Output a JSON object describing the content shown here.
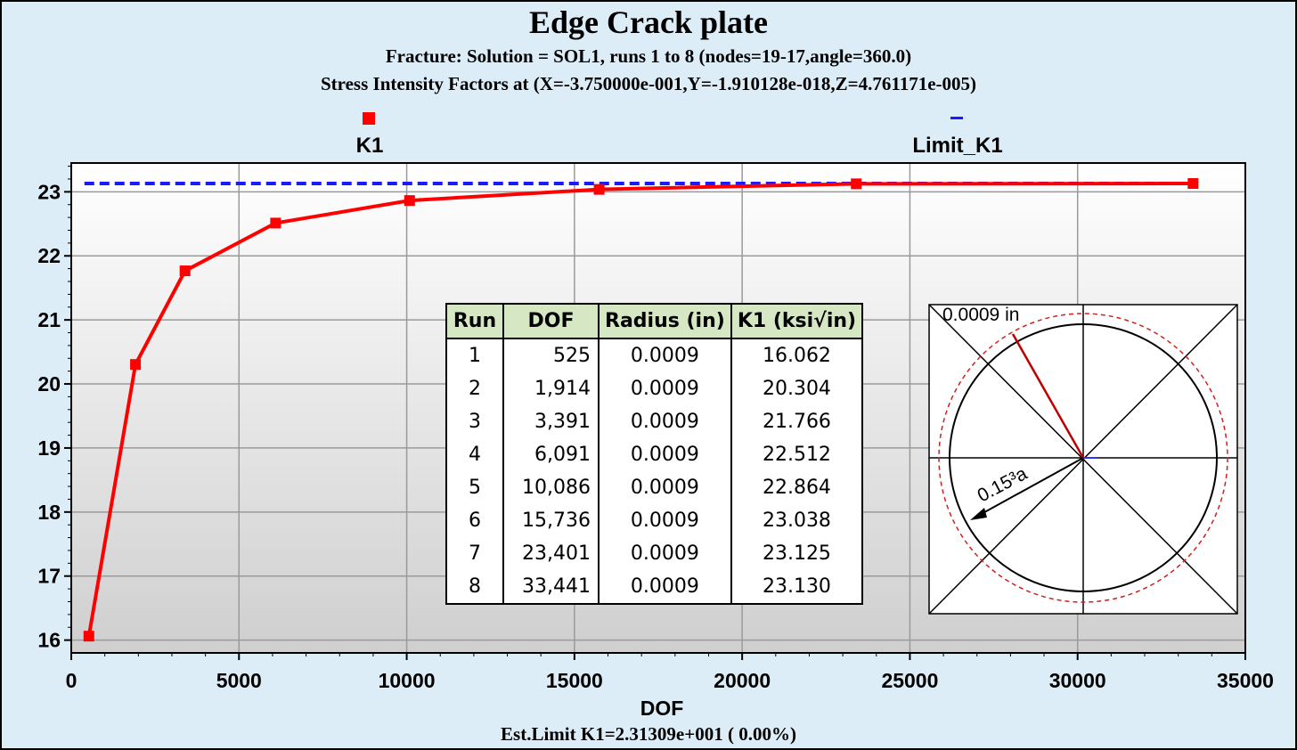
{
  "title": "Edge Crack plate",
  "subtitle1": "Fracture: Solution = SOL1, runs 1 to 8 (nodes=19-17,angle=360.0)",
  "subtitle2": "Stress Intensity Factors at (X=-3.750000e-001,Y=-1.910128e-018,Z=4.761171e-005)",
  "footer": "Est.Limit K1=2.31309e+001 ( 0.00%)",
  "colors": {
    "k1": "#ff0000",
    "limit": "#1a1aff",
    "background": "#dcedf8"
  },
  "chart_data": {
    "type": "line",
    "xlabel": "DOF",
    "ylabel": "",
    "xlim": [
      0,
      35000
    ],
    "ylim": [
      15.8,
      23.45
    ],
    "xticks": [
      0,
      5000,
      10000,
      15000,
      20000,
      25000,
      30000,
      35000
    ],
    "yticks": [
      16,
      17,
      18,
      19,
      20,
      21,
      22,
      23
    ],
    "grid": true,
    "legend": "top",
    "series": [
      {
        "name": "K1",
        "style": "line-square-markers",
        "x": [
          525,
          1914,
          3391,
          6091,
          10086,
          15736,
          23401,
          33441
        ],
        "y": [
          16.062,
          20.304,
          21.766,
          22.512,
          22.864,
          23.038,
          23.125,
          23.13
        ]
      },
      {
        "name": "Limit_K1",
        "style": "dashed",
        "x": [
          525,
          33441
        ],
        "y": [
          23.1309,
          23.1309
        ]
      }
    ]
  },
  "table": {
    "headers": [
      "Run",
      "DOF",
      "Radius (in)",
      "K1 (ksi√in)"
    ],
    "rows": [
      [
        "1",
        "525",
        "0.0009",
        "16.062"
      ],
      [
        "2",
        "1,914",
        "0.0009",
        "20.304"
      ],
      [
        "3",
        "3,391",
        "0.0009",
        "21.766"
      ],
      [
        "4",
        "6,091",
        "0.0009",
        "22.512"
      ],
      [
        "5",
        "10,086",
        "0.0009",
        "22.864"
      ],
      [
        "6",
        "15,736",
        "0.0009",
        "23.038"
      ],
      [
        "7",
        "23,401",
        "0.0009",
        "23.125"
      ],
      [
        "8",
        "33,441",
        "0.0009",
        "23.130"
      ]
    ]
  },
  "inset": {
    "radius_label": "0.0009 in",
    "scale_label": "0.15³a"
  }
}
